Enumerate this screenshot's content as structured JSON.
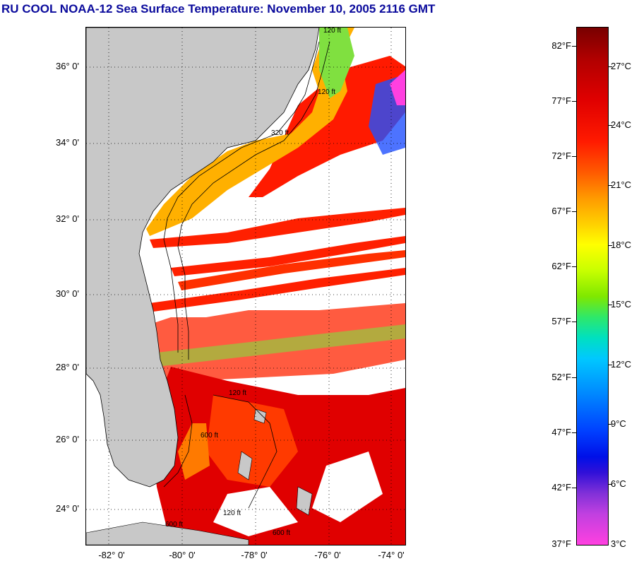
{
  "title": "RU COOL  NOAA-12  Sea Surface Temperature:  November 10, 2005 2116 GMT",
  "map": {
    "latitude_labels": [
      "36° 0'",
      "34° 0'",
      "32° 0'",
      "30° 0'",
      "28° 0'",
      "26° 0'",
      "24° 0'"
    ],
    "longitude_labels": [
      "-82° 0'",
      "-80° 0'",
      "-78° 0'",
      "-76° 0'",
      "-74° 0'"
    ],
    "contour_labels": [
      "120 ft",
      "120 ft",
      "320 ft",
      "120 ft",
      "600 ft",
      "120 ft",
      "600 ft",
      "600 ft"
    ],
    "colors": {
      "land": "#c8c8c8",
      "cloud": "#ffffff",
      "warm": "#ff2000",
      "gulf_stream": "#e00000",
      "shelf": "#ffb000",
      "cool": "#80e040"
    }
  },
  "colorbar": {
    "fahrenheit_labels": [
      "82°F",
      "77°F",
      "72°F",
      "67°F",
      "62°F",
      "57°F",
      "52°F",
      "47°F",
      "42°F",
      "37°F"
    ],
    "celsius_labels": [
      "27°C",
      "24°C",
      "21°C",
      "18°C",
      "15°C",
      "12°C",
      "9°C",
      "6°C",
      "3°C"
    ],
    "range_f": [
      37,
      84
    ],
    "range_c": [
      3,
      29
    ]
  }
}
